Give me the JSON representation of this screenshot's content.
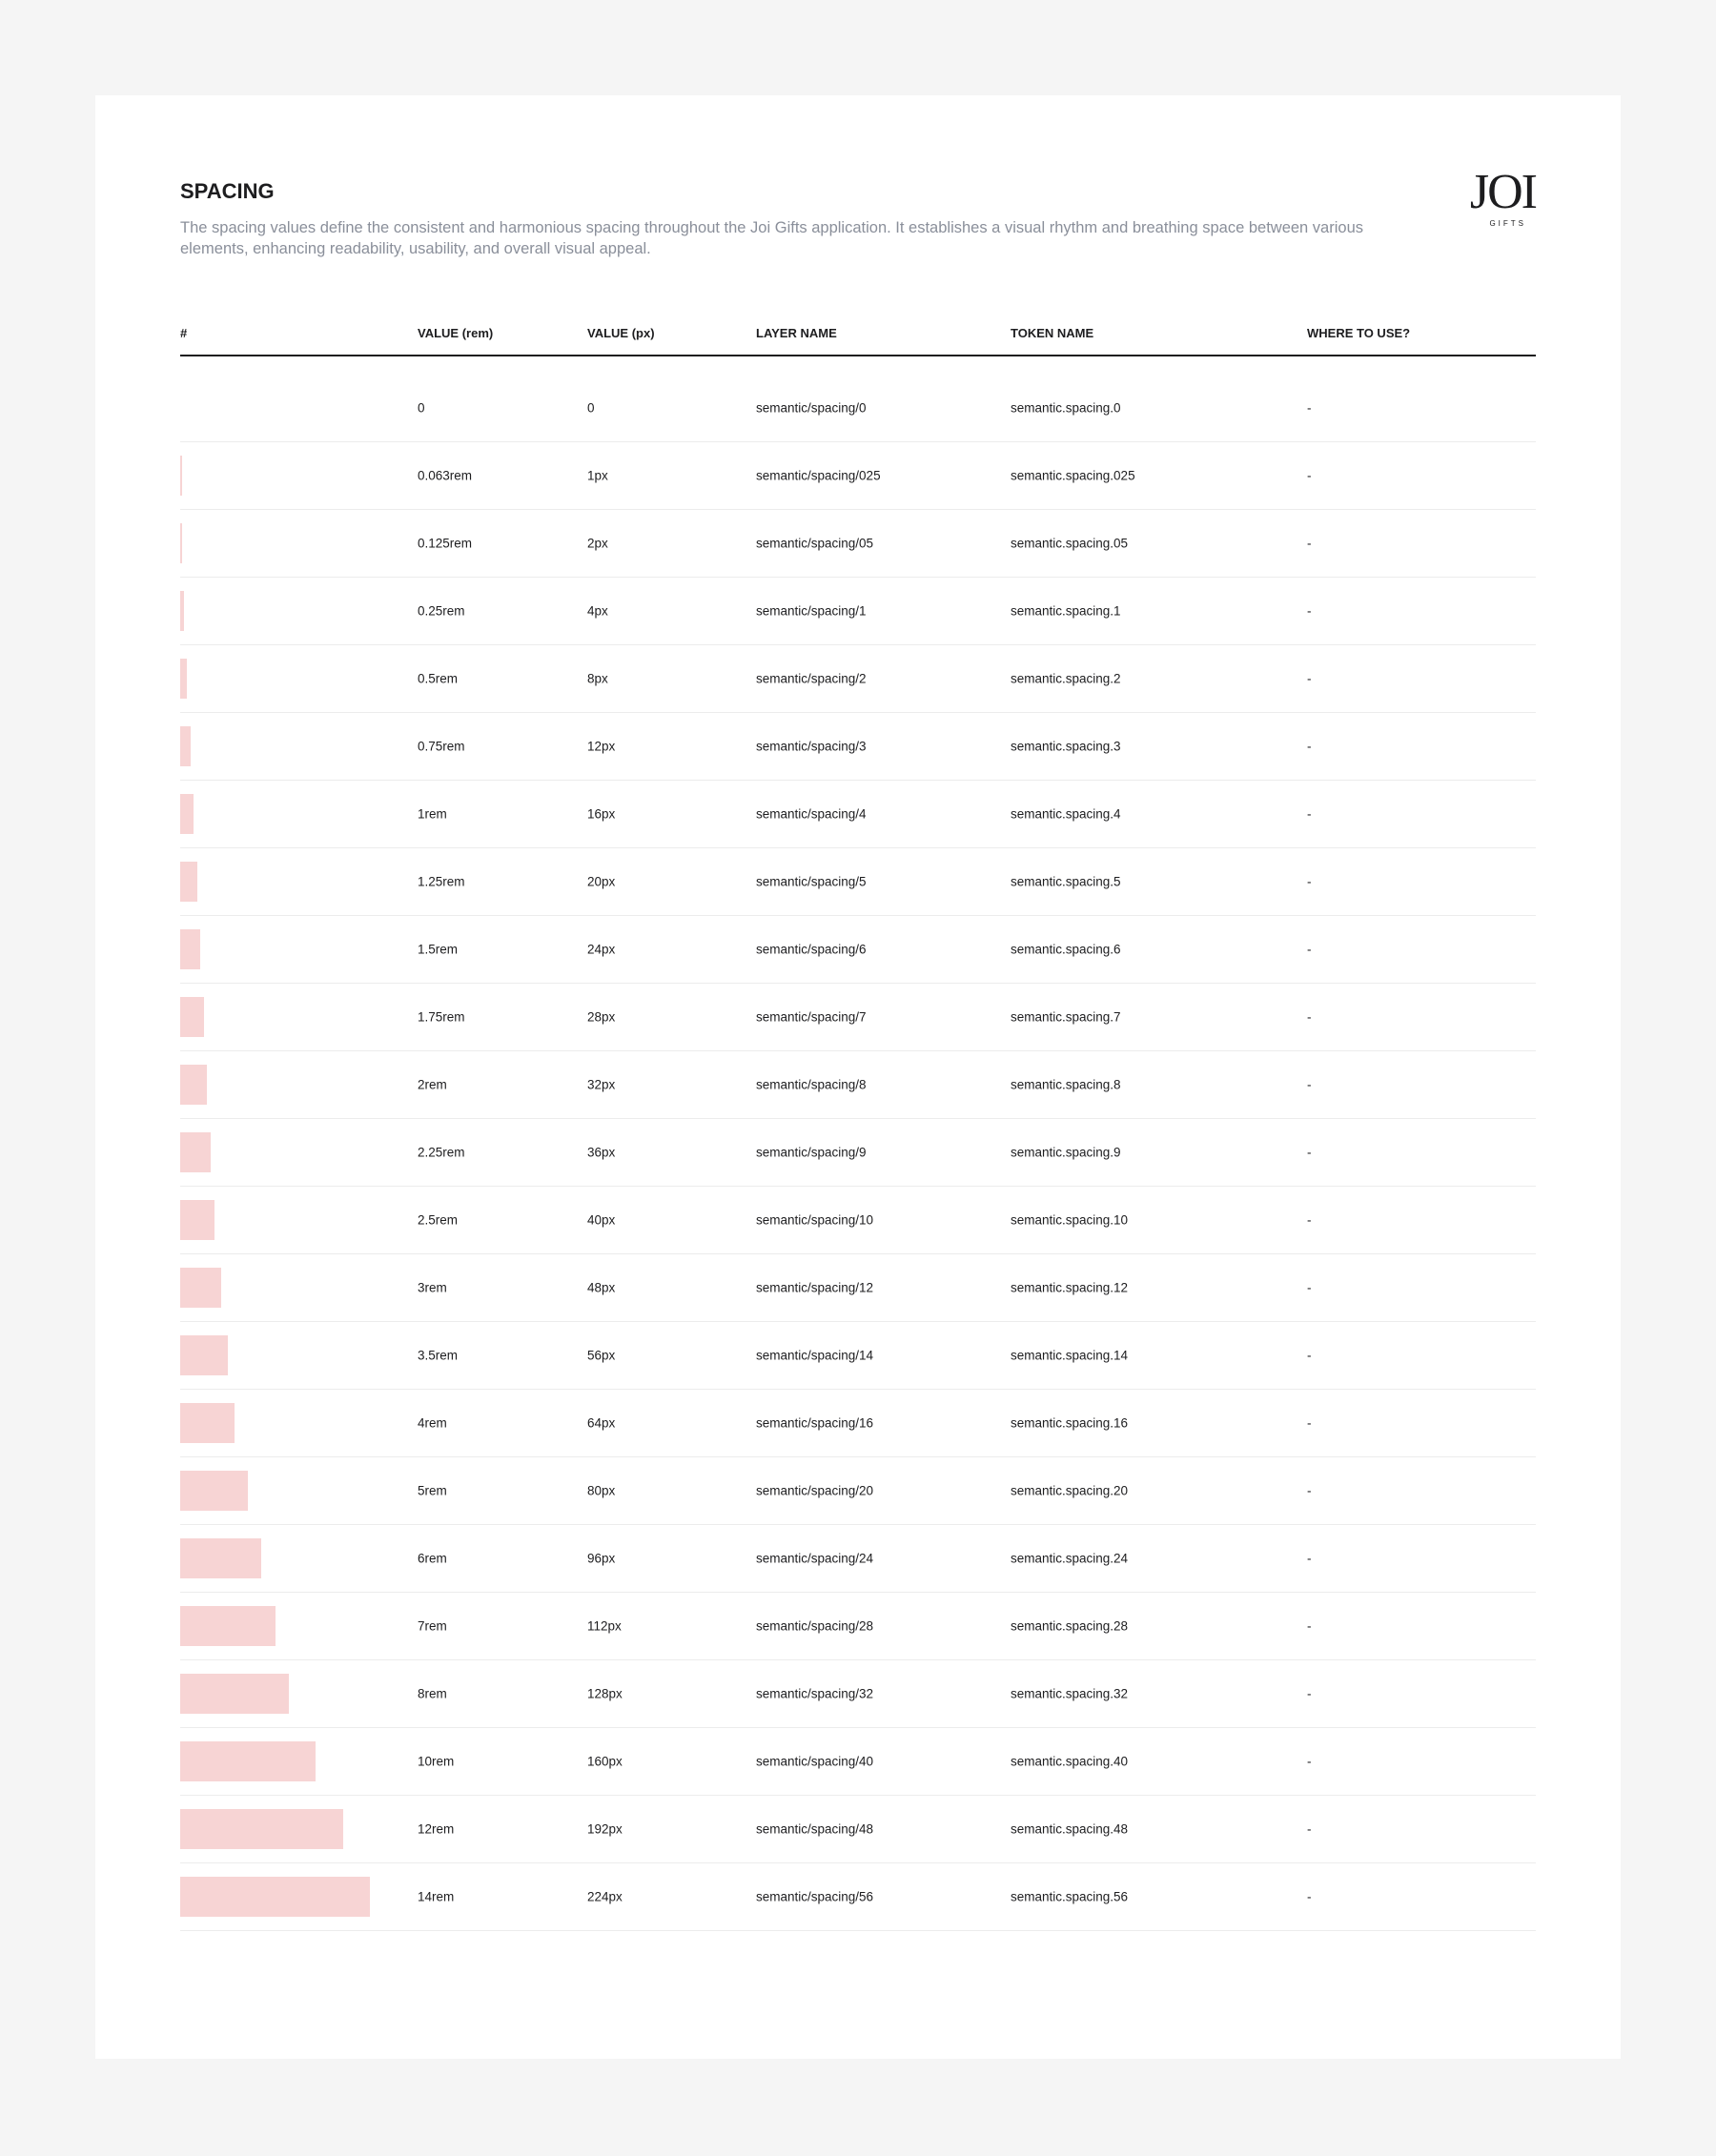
{
  "header": {
    "title": "SPACING",
    "description": "The spacing values define the consistent and harmonious spacing throughout the Joi Gifts application. It establishes a visual rhythm and breathing space between various elements, enhancing readability, usability, and overall visual appeal."
  },
  "logo": {
    "name": "JOI",
    "tagline": "GIFTS"
  },
  "table": {
    "columns": [
      "#",
      "VALUE (rem)",
      "VALUE (px)",
      "LAYER NAME",
      "TOKEN NAME",
      "WHERE TO USE?"
    ],
    "rows": [
      [
        "0",
        "0",
        "semantic/spacing/0",
        "semantic.spacing.0",
        "-"
      ],
      [
        "0.063rem",
        "1px",
        "semantic/spacing/025",
        "semantic.spacing.025",
        "-"
      ],
      [
        "0.125rem",
        "2px",
        "semantic/spacing/05",
        "semantic.spacing.05",
        "-"
      ],
      [
        "0.25rem",
        "4px",
        "semantic/spacing/1",
        "semantic.spacing.1",
        "-"
      ],
      [
        "0.5rem",
        "8px",
        "semantic/spacing/2",
        "semantic.spacing.2",
        "-"
      ],
      [
        "0.75rem",
        "12px",
        "semantic/spacing/3",
        "semantic.spacing.3",
        "-"
      ],
      [
        "1rem",
        "16px",
        "semantic/spacing/4",
        "semantic.spacing.4",
        "-"
      ],
      [
        "1.25rem",
        "20px",
        "semantic/spacing/5",
        "semantic.spacing.5",
        "-"
      ],
      [
        "1.5rem",
        "24px",
        "semantic/spacing/6",
        "semantic.spacing.6",
        "-"
      ],
      [
        "1.75rem",
        "28px",
        "semantic/spacing/7",
        "semantic.spacing.7",
        "-"
      ],
      [
        "2rem",
        "32px",
        "semantic/spacing/8",
        "semantic.spacing.8",
        "-"
      ],
      [
        "2.25rem",
        "36px",
        "semantic/spacing/9",
        "semantic.spacing.9",
        "-"
      ],
      [
        "2.5rem",
        "40px",
        "semantic/spacing/10",
        "semantic.spacing.10",
        "-"
      ],
      [
        "3rem",
        "48px",
        "semantic/spacing/12",
        "semantic.spacing.12",
        "-"
      ],
      [
        "3.5rem",
        "56px",
        "semantic/spacing/14",
        "semantic.spacing.14",
        "-"
      ],
      [
        "4rem",
        "64px",
        "semantic/spacing/16",
        "semantic.spacing.16",
        "-"
      ],
      [
        "5rem",
        "80px",
        "semantic/spacing/20",
        "semantic.spacing.20",
        "-"
      ],
      [
        "6rem",
        "96px",
        "semantic/spacing/24",
        "semantic.spacing.24",
        "-"
      ],
      [
        "7rem",
        "112px",
        "semantic/spacing/28",
        "semantic.spacing.28",
        "-"
      ],
      [
        "8rem",
        "128px",
        "semantic/spacing/32",
        "semantic.spacing.32",
        "-"
      ],
      [
        "10rem",
        "160px",
        "semantic/spacing/40",
        "semantic.spacing.40",
        "-"
      ],
      [
        "12rem",
        "192px",
        "semantic/spacing/48",
        "semantic.spacing.48",
        "-"
      ],
      [
        "14rem",
        "224px",
        "semantic/spacing/56",
        "semantic.spacing.56",
        "-"
      ]
    ]
  }
}
